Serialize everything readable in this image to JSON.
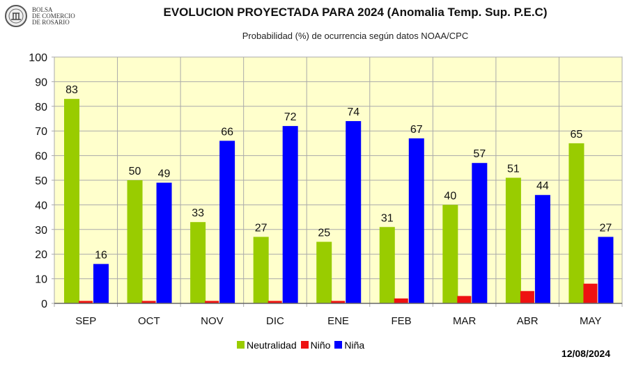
{
  "logo": {
    "lines": [
      "BOLSA",
      "DE COMERCIO",
      "DE ROSARIO"
    ]
  },
  "chart_data": {
    "type": "bar",
    "title": "EVOLUCION PROYECTADA PARA 2024 (Anomalia Temp. Sup. P.E.C)",
    "subtitle": "Probabilidad (%) de ocurrencia según datos NOAA/CPC",
    "categories": [
      "SEP",
      "OCT",
      "NOV",
      "DIC",
      "ENE",
      "FEB",
      "MAR",
      "ABR",
      "MAY"
    ],
    "series": [
      {
        "name": "Neutralidad",
        "color": "#99cc00",
        "values": [
          83,
          50,
          33,
          27,
          25,
          31,
          40,
          51,
          65
        ],
        "labels": true
      },
      {
        "name": "Niño",
        "color": "#ee1111",
        "values": [
          1,
          1,
          1,
          1,
          1,
          2,
          3,
          5,
          8
        ],
        "labels": false
      },
      {
        "name": "Niña",
        "color": "#0000ff",
        "values": [
          16,
          49,
          66,
          72,
          74,
          67,
          57,
          44,
          27
        ],
        "labels": true
      }
    ],
    "ylim": [
      0,
      100
    ],
    "yticks": [
      0,
      10,
      20,
      30,
      40,
      50,
      60,
      70,
      80,
      90,
      100
    ],
    "grid": true,
    "plot_background": "#ffffcc",
    "legend": "bottom"
  },
  "date": "12/08/2024"
}
